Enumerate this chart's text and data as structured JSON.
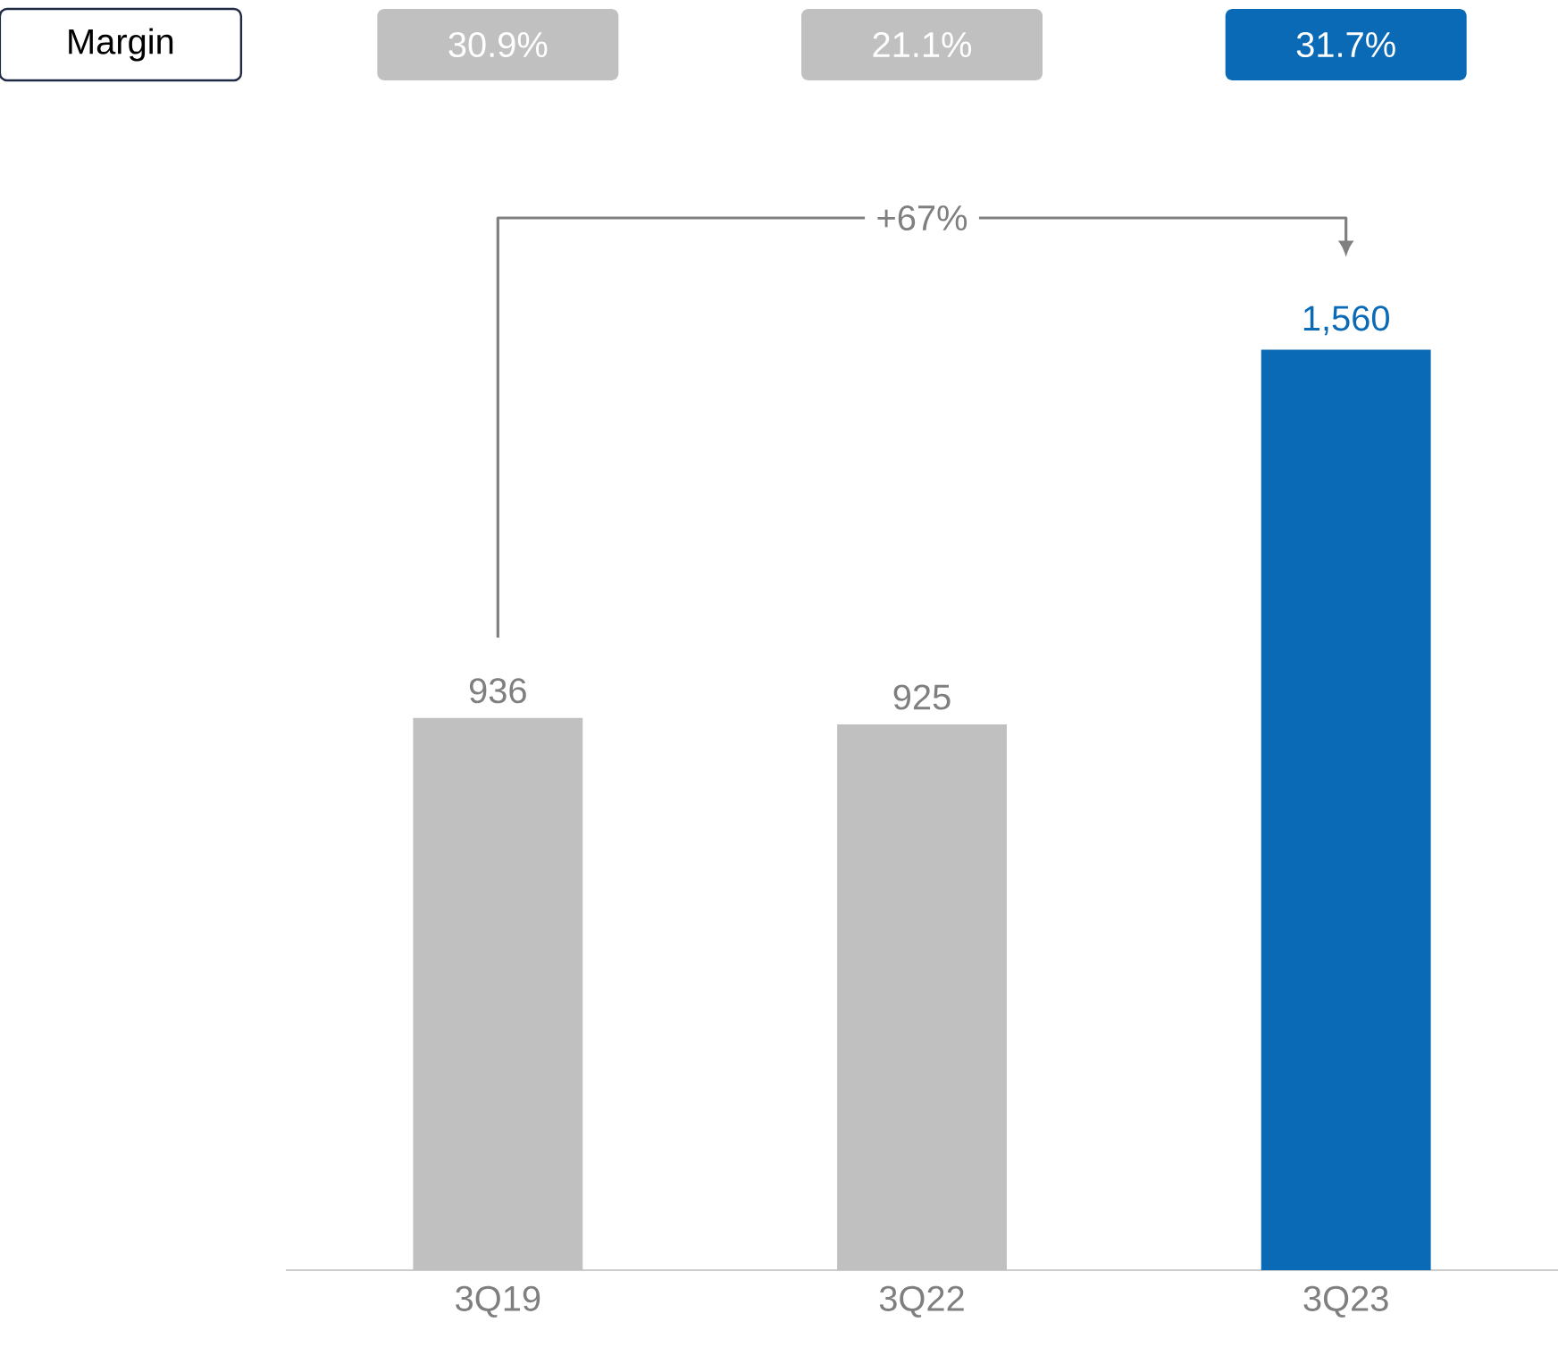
{
  "chart_data": {
    "type": "bar",
    "categories": [
      "3Q19",
      "3Q22",
      "3Q23"
    ],
    "values": [
      936,
      925,
      1560
    ],
    "colors": [
      "#c0c0c0",
      "#c0c0c0",
      "#0a6ab6"
    ],
    "value_labels": [
      "936",
      "925",
      "1,560"
    ],
    "annotations": [
      "Margin",
      "30.9%",
      "21.1%",
      "31.7%",
      "+67%"
    ]
  }
}
